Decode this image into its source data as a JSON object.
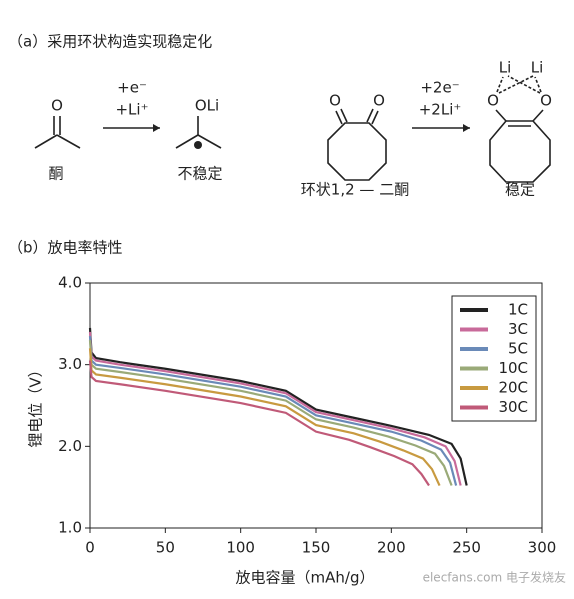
{
  "diagram": {
    "title": "（a）采用环状构造实现稳定化",
    "ketone": {
      "oxygen": "O",
      "label": "酮"
    },
    "step1": {
      "electron": "+e⁻",
      "lithium": "+Li⁺"
    },
    "unstable": {
      "group": "OLi",
      "label": "不稳定"
    },
    "diketone": {
      "oxygen_left": "O",
      "oxygen_right": "O",
      "label": "环状1,2 — 二酮"
    },
    "step2": {
      "electron": "+2e⁻",
      "lithium": "+2Li⁺"
    },
    "stable": {
      "li_left": "Li",
      "li_right": "Li",
      "oxygen_left": "O",
      "oxygen_right": "O",
      "label": "稳定"
    }
  },
  "chart_data": {
    "type": "line",
    "title": "（b）放电率特性",
    "xlabel": "放电容量（mAh/g）",
    "ylabel": "锂电位（V）",
    "xlim": [
      0,
      300
    ],
    "xticks": [
      0,
      50,
      100,
      150,
      200,
      250,
      300
    ],
    "ylim": [
      1,
      4
    ],
    "yticks": [
      {
        "value": 1,
        "label": "1.0"
      },
      {
        "value": 2,
        "label": "2.0"
      },
      {
        "value": 3,
        "label": "3.0"
      },
      {
        "value": 4,
        "label": "4.0"
      }
    ],
    "legend": "top-right",
    "watermark": "elecfans.com 电子发烧友",
    "series": [
      {
        "name": "1C",
        "color": "#222222",
        "x": [
          0,
          1,
          4,
          20,
          50,
          100,
          130,
          150,
          175,
          200,
          225,
          240,
          246,
          250
        ],
        "values": [
          3.45,
          3.15,
          3.08,
          3.03,
          2.95,
          2.8,
          2.68,
          2.45,
          2.35,
          2.25,
          2.14,
          2.03,
          1.85,
          1.52
        ]
      },
      {
        "name": "3C",
        "color": "#c86a9a",
        "x": [
          0,
          1,
          4,
          20,
          50,
          100,
          130,
          150,
          175,
          200,
          222,
          236,
          242,
          246
        ],
        "values": [
          3.4,
          3.1,
          3.05,
          3.0,
          2.92,
          2.77,
          2.65,
          2.42,
          2.32,
          2.22,
          2.11,
          2.0,
          1.82,
          1.52
        ]
      },
      {
        "name": "5C",
        "color": "#6a8ab8",
        "x": [
          0,
          1,
          4,
          20,
          50,
          100,
          130,
          150,
          175,
          200,
          220,
          233,
          239,
          243
        ],
        "values": [
          3.35,
          3.05,
          3.0,
          2.96,
          2.88,
          2.73,
          2.61,
          2.38,
          2.28,
          2.18,
          2.07,
          1.96,
          1.8,
          1.52
        ]
      },
      {
        "name": "10C",
        "color": "#9aaa78",
        "x": [
          0,
          1,
          4,
          20,
          50,
          100,
          130,
          150,
          175,
          198,
          216,
          229,
          235,
          240
        ],
        "values": [
          3.3,
          3.0,
          2.95,
          2.91,
          2.83,
          2.68,
          2.56,
          2.33,
          2.23,
          2.12,
          2.01,
          1.91,
          1.76,
          1.52
        ]
      },
      {
        "name": "20C",
        "color": "#c89a40",
        "x": [
          0,
          1,
          4,
          20,
          50,
          100,
          130,
          150,
          175,
          192,
          208,
          221,
          227,
          232
        ],
        "values": [
          3.2,
          2.93,
          2.88,
          2.84,
          2.76,
          2.61,
          2.49,
          2.26,
          2.16,
          2.06,
          1.95,
          1.85,
          1.72,
          1.52
        ]
      },
      {
        "name": "30C",
        "color": "#c05a78",
        "x": [
          0,
          1,
          4,
          20,
          50,
          100,
          130,
          150,
          172,
          186,
          202,
          214,
          220,
          225
        ],
        "values": [
          3.05,
          2.85,
          2.8,
          2.76,
          2.68,
          2.53,
          2.41,
          2.18,
          2.08,
          1.99,
          1.88,
          1.78,
          1.66,
          1.52
        ]
      }
    ]
  }
}
